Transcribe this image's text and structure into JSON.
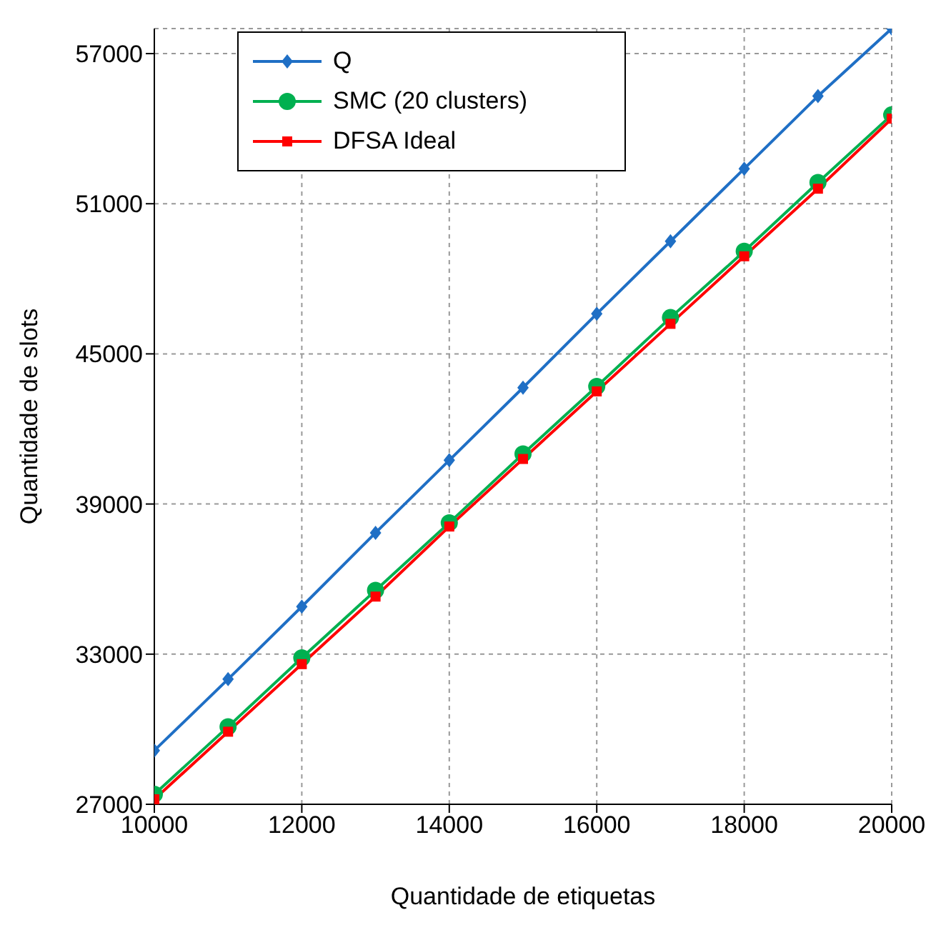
{
  "chart_data": {
    "type": "line",
    "xlabel": "Quantidade de etiquetas",
    "ylabel": "Quantidade de slots",
    "x": [
      10000,
      11000,
      12000,
      13000,
      14000,
      15000,
      16000,
      17000,
      18000,
      19000,
      20000
    ],
    "series": [
      {
        "name": "Q",
        "color": "#1f6fc5",
        "marker": "diamond",
        "values": [
          29150,
          32000,
          34900,
          37850,
          40750,
          43650,
          46600,
          49500,
          52400,
          55300,
          58000
        ]
      },
      {
        "name": "SMC (20 clusters)",
        "color": "#00b050",
        "marker": "circle",
        "values": [
          27400,
          30100,
          32850,
          35550,
          38250,
          41000,
          43700,
          46450,
          49100,
          51850,
          54550
        ]
      },
      {
        "name": "DFSA Ideal",
        "color": "#ff0000",
        "marker": "square",
        "values": [
          27200,
          29900,
          32600,
          35300,
          38100,
          40800,
          43500,
          46200,
          48900,
          51600,
          54400
        ]
      }
    ],
    "xlim": [
      10000,
      20000
    ],
    "xticks": [
      10000,
      12000,
      14000,
      16000,
      18000,
      20000
    ],
    "ylim": [
      27000,
      58000
    ],
    "yticks": [
      27000,
      33000,
      39000,
      45000,
      51000,
      57000
    ],
    "grid": true,
    "legend": "top left",
    "line_style": "solid"
  }
}
